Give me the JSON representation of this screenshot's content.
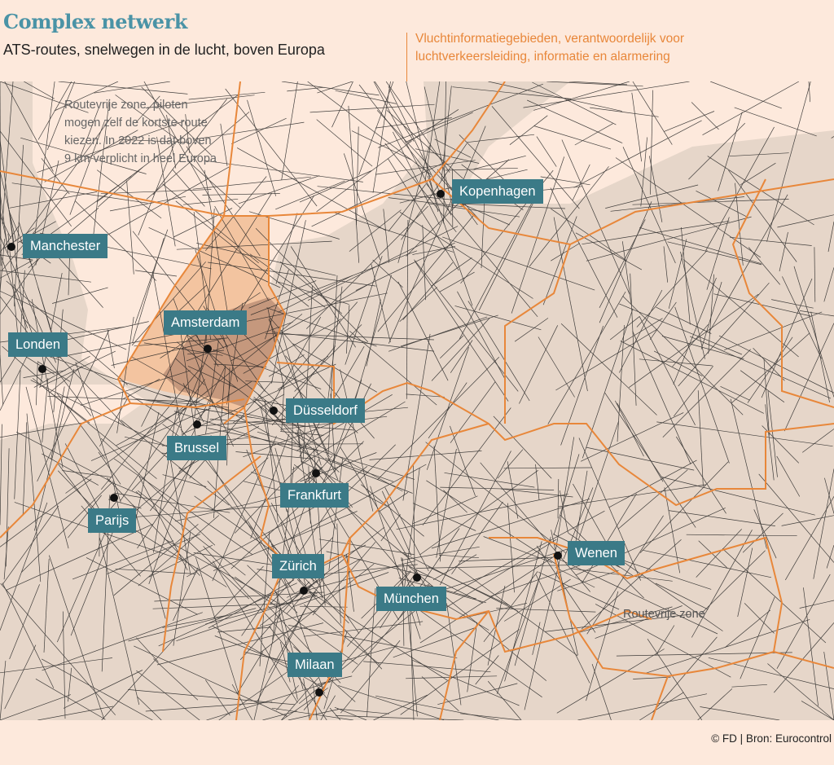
{
  "header": {
    "title": "Complex netwerk",
    "subtitle": "ATS-routes, snelwegen in de lucht, boven Europa",
    "legend": "Vluchtinformatiegebieden, verantwoordelijk voor luchtverkeersleiding, informatie en alarmering"
  },
  "annotations": {
    "free_route_note": "Routevrije zone, piloten mogen zelf de kortste route kiezen. In 2022 is dat boven 9 km verplicht in heel Europa",
    "free_route_label": "Routevrije zone"
  },
  "cities": [
    {
      "name": "Kopenhagen"
    },
    {
      "name": "Manchester"
    },
    {
      "name": "Amsterdam"
    },
    {
      "name": "Londen"
    },
    {
      "name": "Düsseldorf"
    },
    {
      "name": "Brussel"
    },
    {
      "name": "Frankfurt"
    },
    {
      "name": "Parijs"
    },
    {
      "name": "Wenen"
    },
    {
      "name": "Zürich"
    },
    {
      "name": "München"
    },
    {
      "name": "Milaan"
    }
  ],
  "colors": {
    "background": "#fde9dc",
    "land": "#e6d6c9",
    "border": "#e8873a",
    "highlight": "#f3c4a0",
    "label": "#3b7a87",
    "title": "#4a93a6"
  },
  "footer": {
    "source": "© FD |  Bron: Eurocontrol"
  }
}
